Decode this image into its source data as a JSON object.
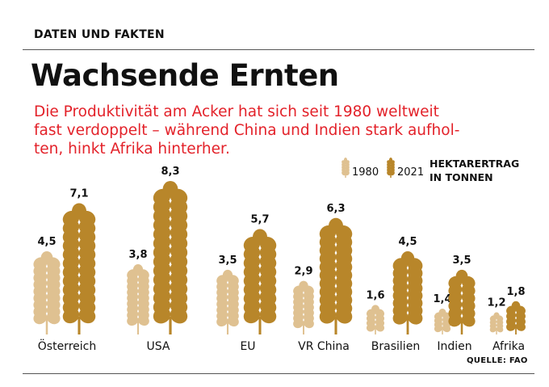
{
  "kicker": "DATEN UND FAKTEN",
  "title": "Wachsende Ernten",
  "subtitle_lines": [
    "Die Produktivität am Acker hat sich seit 1980 weltweit",
    "fast verdoppelt – während China und Indien stark aufhol-",
    "ten, hinkt Afrika hinterher."
  ],
  "unit_lines": [
    "HEKTARERTRAG",
    "IN TONNEN"
  ],
  "source": "QUELLE: FAO",
  "colors": {
    "light": "#dfc191",
    "dark": "#b8862a",
    "accent": "#e3222a"
  },
  "chart_data": {
    "type": "bar",
    "title": "Wachsende Ernten",
    "ylabel": "HEKTARERTRAG IN TONNEN",
    "categories": [
      "Österreich",
      "USA",
      "EU",
      "VR China",
      "Brasilien",
      "Indien",
      "Afrika"
    ],
    "series": [
      {
        "name": "1980",
        "values": [
          4.5,
          3.8,
          3.5,
          2.9,
          1.6,
          1.4,
          1.2
        ],
        "labels": [
          "4,5",
          "3,8",
          "3,5",
          "2,9",
          "1,6",
          "1,4",
          "1,2"
        ]
      },
      {
        "name": "2021",
        "values": [
          7.1,
          8.3,
          5.7,
          6.3,
          4.5,
          3.5,
          1.8
        ],
        "labels": [
          "7,1",
          "8,3",
          "5,7",
          "6,3",
          "4,5",
          "3,5",
          "1,8"
        ]
      }
    ],
    "legend": "top-right",
    "grid": false
  }
}
